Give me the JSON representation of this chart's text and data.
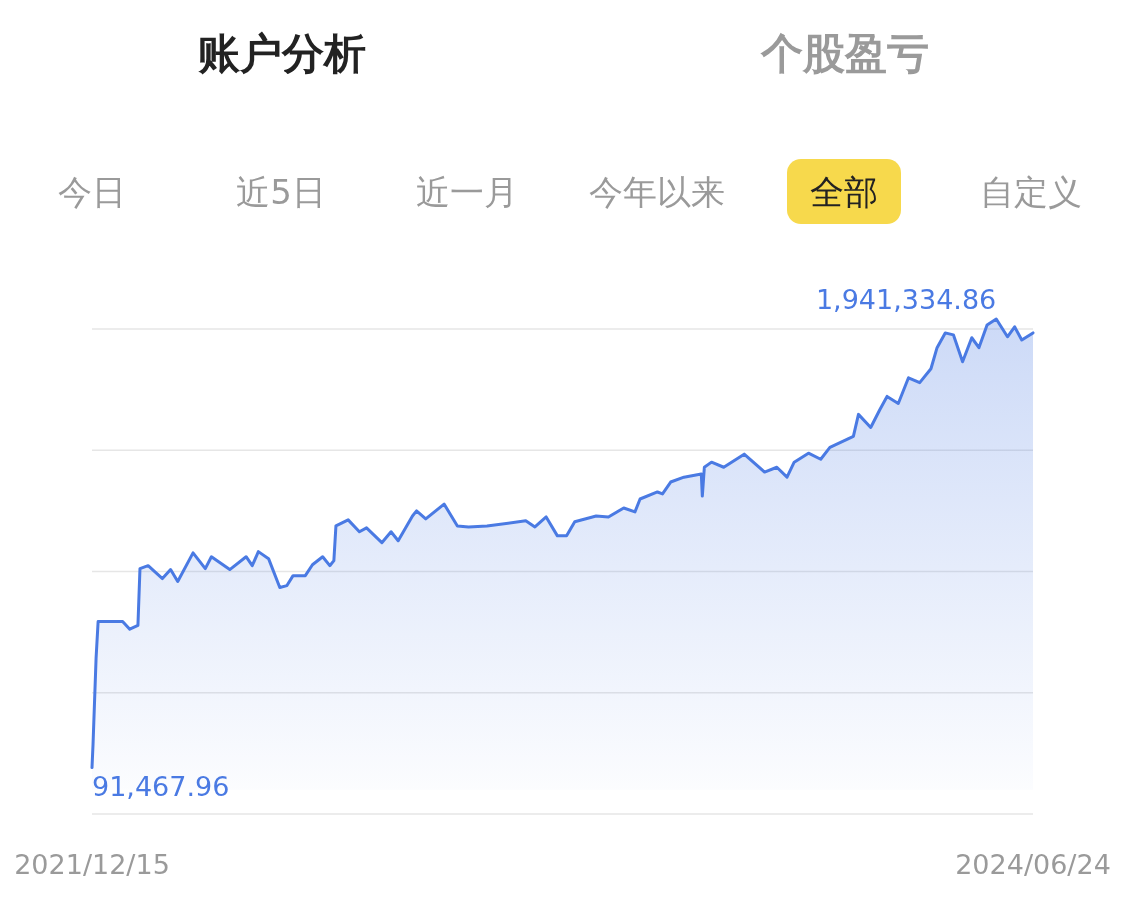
{
  "chart_data": {
    "type": "area",
    "annotations": [
      "账户分析",
      "个股盈亏",
      "今日",
      "近5日",
      "近一月",
      "今年以来",
      "全部",
      "自定义"
    ],
    "x": [
      "2021-12-15",
      "2021-12-16",
      "2021-12-19",
      "2021-12-21",
      "2022-01-01",
      "2022-01-14",
      "2022-01-21",
      "2022-01-29",
      "2022-01-31",
      "2022-02-08",
      "2022-02-22",
      "2022-03-02",
      "2022-03-09",
      "2022-03-24",
      "2022-04-05",
      "2022-04-11",
      "2022-04-29",
      "2022-05-15",
      "2022-05-21",
      "2022-05-27",
      "2022-06-06",
      "2022-06-17",
      "2022-06-24",
      "2022-06-30",
      "2022-07-12",
      "2022-07-19",
      "2022-07-29",
      "2022-08-05",
      "2022-08-09",
      "2022-08-11",
      "2022-08-23",
      "2022-09-03",
      "2022-09-10",
      "2022-09-25",
      "2022-10-04",
      "2022-10-11",
      "2022-10-25",
      "2022-10-29",
      "2022-11-07",
      "2022-11-25",
      "2022-12-08",
      "2022-12-19",
      "2023-01-06",
      "2023-02-13",
      "2023-02-22",
      "2023-03-05",
      "2023-03-16",
      "2023-03-25",
      "2023-04-02",
      "2023-04-23",
      "2023-05-05",
      "2023-05-20",
      "2023-05-31",
      "2023-06-05",
      "2023-06-22",
      "2023-06-27",
      "2023-07-05",
      "2023-07-18",
      "2023-08-04",
      "2023-08-05",
      "2023-08-07",
      "2023-08-14",
      "2023-08-26",
      "2023-09-15",
      "2023-10-05",
      "2023-10-17",
      "2023-10-27",
      "2023-11-03",
      "2023-11-17",
      "2023-11-29",
      "2023-12-08",
      "2023-12-31",
      "2024-01-05",
      "2024-01-17",
      "2024-01-26",
      "2024-02-02",
      "2024-02-13",
      "2024-02-23",
      "2024-03-05",
      "2024-03-16",
      "2024-03-22",
      "2024-03-30",
      "2024-04-07",
      "2024-04-16",
      "2024-04-25",
      "2024-05-02",
      "2024-05-10",
      "2024-05-19",
      "2024-05-30",
      "2024-06-06",
      "2024-06-13",
      "2024-06-24"
    ],
    "series": [
      {
        "color": "#4a7ae3",
        "values": [
          91467.96,
          186000,
          543000,
          694000,
          694000,
          694000,
          662000,
          678000,
          912000,
          924000,
          871000,
          908000,
          859000,
          977000,
          912000,
          961000,
          908000,
          961000,
          924000,
          982000,
          953000,
          834000,
          842000,
          883000,
          883000,
          928000,
          961000,
          924000,
          945000,
          1088000,
          1113000,
          1064000,
          1080000,
          1019000,
          1064000,
          1027000,
          1129000,
          1150000,
          1117000,
          1178000,
          1088000,
          1084000,
          1088000,
          1109000,
          1084000,
          1125000,
          1047000,
          1047000,
          1105000,
          1129000,
          1125000,
          1162000,
          1146000,
          1199000,
          1228000,
          1220000,
          1269000,
          1289000,
          1302000,
          1211000,
          1330000,
          1351000,
          1330000,
          1384000,
          1310000,
          1330000,
          1289000,
          1351000,
          1388000,
          1363000,
          1412000,
          1457000,
          1548000,
          1494000,
          1568000,
          1622000,
          1593000,
          1699000,
          1679000,
          1736000,
          1823000,
          1884000,
          1876000,
          1765000,
          1864000,
          1823000,
          1917000,
          1941334.86,
          1868000,
          1909000,
          1855000,
          1884000
        ],
        "value_labels": [
          "91,467.96",
          null,
          null,
          null,
          null,
          null,
          null,
          null,
          null,
          null,
          null,
          null,
          null,
          null,
          null,
          null,
          null,
          null,
          null,
          null,
          null,
          null,
          null,
          null,
          null,
          null,
          null,
          null,
          null,
          null,
          null,
          null,
          null,
          null,
          null,
          null,
          null,
          null,
          null,
          null,
          null,
          null,
          null,
          null,
          null,
          null,
          null,
          null,
          null,
          null,
          null,
          null,
          null,
          null,
          null,
          null,
          null,
          null,
          null,
          null,
          null,
          null,
          null,
          null,
          null,
          null,
          null,
          null,
          null,
          null,
          null,
          null,
          null,
          null,
          null,
          null,
          null,
          null,
          null,
          null,
          null,
          null,
          null,
          null,
          null,
          null,
          null,
          "1,941,334.86",
          null,
          null,
          null,
          null
        ]
      }
    ],
    "xlim": [
      "2021-12-15",
      "2024-06-24"
    ],
    "xticks": [
      {
        "value": "2021-12-15",
        "label": "2021/12/15"
      },
      {
        "value": "2024-06-24",
        "label": "2024/06/24"
      }
    ],
    "yticks": [
      {
        "value": -100000,
        "label": null
      },
      {
        "value": 400000,
        "label": null
      },
      {
        "value": 900000,
        "label": null
      },
      {
        "value": 1400000,
        "label": null
      },
      {
        "value": 1900000,
        "label": null
      }
    ],
    "grid": "y",
    "tick_labels": "x"
  }
}
